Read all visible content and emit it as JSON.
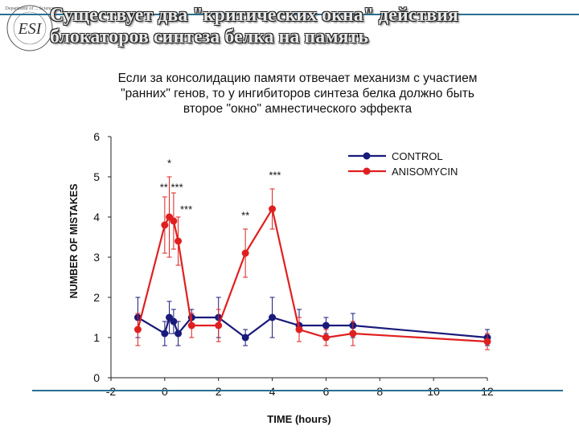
{
  "header": {
    "title_line1": "Существует два \"критических окна\" действия",
    "title_line2": "блокаторов синтеза белка на память"
  },
  "subtitle": {
    "line1": "Если за консолидацию памяти отвечает механизм с участием",
    "line2": "\"ранних\" генов, то у ингибиторов синтеза белка должно быть",
    "line3": "второе \"окно\" амнестического эффекта"
  },
  "logo": {
    "letters": "ESI",
    "ring_text": "Department of ... Science"
  },
  "chart_data": {
    "type": "line",
    "xlabel": "TIME (hours)",
    "ylabel": "NUMBER OF MISTAKES",
    "xlim": [
      -2,
      12
    ],
    "ylim": [
      0,
      6
    ],
    "xticks": [
      -2,
      0,
      2,
      4,
      6,
      8,
      10,
      12
    ],
    "yticks": [
      0,
      1,
      2,
      3,
      4,
      5,
      6
    ],
    "legend_position": "top-right",
    "series": [
      {
        "name": "CONTROL",
        "color": "#1a1a7a",
        "points": [
          {
            "x": -1,
            "y": 1.5,
            "err": 0.5
          },
          {
            "x": 0,
            "y": 1.1,
            "err": 0.3
          },
          {
            "x": 0.17,
            "y": 1.5,
            "err": 0.4
          },
          {
            "x": 0.33,
            "y": 1.4,
            "err": 0.3
          },
          {
            "x": 0.5,
            "y": 1.1,
            "err": 0.3
          },
          {
            "x": 1,
            "y": 1.5,
            "err": 0.2
          },
          {
            "x": 2,
            "y": 1.5,
            "err": 0.5
          },
          {
            "x": 3,
            "y": 1.0,
            "err": 0.2
          },
          {
            "x": 4,
            "y": 1.5,
            "err": 0.5
          },
          {
            "x": 5,
            "y": 1.3,
            "err": 0.4
          },
          {
            "x": 6,
            "y": 1.3,
            "err": 0.2
          },
          {
            "x": 7,
            "y": 1.3,
            "err": 0.3
          },
          {
            "x": 12,
            "y": 1.0,
            "err": 0.2
          }
        ]
      },
      {
        "name": "ANISOMYCIN",
        "color": "#e02020",
        "points": [
          {
            "x": -1,
            "y": 1.2,
            "err": 0.4
          },
          {
            "x": 0,
            "y": 3.8,
            "err": 0.7
          },
          {
            "x": 0.17,
            "y": 4.0,
            "err": 1.0
          },
          {
            "x": 0.33,
            "y": 3.9,
            "err": 0.7
          },
          {
            "x": 0.5,
            "y": 3.4,
            "err": 0.6
          },
          {
            "x": 1,
            "y": 1.3,
            "err": 0.3
          },
          {
            "x": 2,
            "y": 1.3,
            "err": 0.4
          },
          {
            "x": 3,
            "y": 3.1,
            "err": 0.6
          },
          {
            "x": 4,
            "y": 4.2,
            "err": 0.5
          },
          {
            "x": 5,
            "y": 1.2,
            "err": 0.3
          },
          {
            "x": 6,
            "y": 1.0,
            "err": 0.2
          },
          {
            "x": 7,
            "y": 1.1,
            "err": 0.3
          },
          {
            "x": 12,
            "y": 0.9,
            "err": 0.2
          }
        ]
      }
    ],
    "annotations": [
      {
        "text": "*",
        "x": 0.17,
        "y": 5.25
      },
      {
        "text": "** ***",
        "x": 0.25,
        "y": 4.65
      },
      {
        "text": "***",
        "x": 0.8,
        "y": 4.1
      },
      {
        "text": "**",
        "x": 3.0,
        "y": 3.95
      },
      {
        "text": "***",
        "x": 4.1,
        "y": 4.95
      }
    ]
  }
}
